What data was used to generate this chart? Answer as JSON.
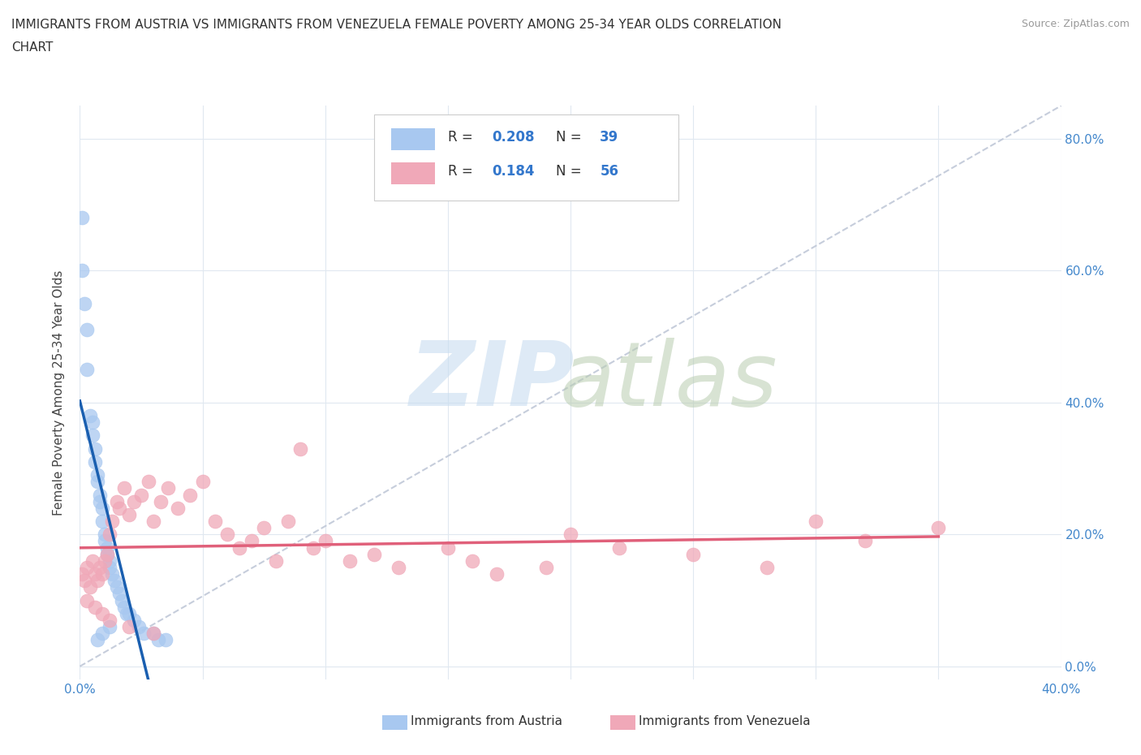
{
  "title_line1": "IMMIGRANTS FROM AUSTRIA VS IMMIGRANTS FROM VENEZUELA FEMALE POVERTY AMONG 25-34 YEAR OLDS CORRELATION",
  "title_line2": "CHART",
  "source": "Source: ZipAtlas.com",
  "ylabel": "Female Poverty Among 25-34 Year Olds",
  "xlim": [
    0.0,
    0.4
  ],
  "ylim": [
    -0.02,
    0.85
  ],
  "austria_R": 0.208,
  "austria_N": 39,
  "venezuela_R": 0.184,
  "venezuela_N": 56,
  "austria_color": "#a8c8f0",
  "venezuela_color": "#f0a8b8",
  "austria_line_color": "#1a5fb0",
  "venezuela_line_color": "#e0607a",
  "diagonal_color": "#c0c8d8",
  "austria_x": [
    0.001,
    0.001,
    0.002,
    0.003,
    0.003,
    0.004,
    0.005,
    0.005,
    0.006,
    0.006,
    0.007,
    0.007,
    0.008,
    0.008,
    0.009,
    0.009,
    0.01,
    0.01,
    0.011,
    0.011,
    0.012,
    0.012,
    0.013,
    0.014,
    0.015,
    0.016,
    0.017,
    0.018,
    0.019,
    0.02,
    0.022,
    0.024,
    0.026,
    0.03,
    0.032,
    0.035,
    0.012,
    0.009,
    0.007
  ],
  "austria_y": [
    0.68,
    0.6,
    0.55,
    0.51,
    0.45,
    0.38,
    0.37,
    0.35,
    0.33,
    0.31,
    0.29,
    0.28,
    0.26,
    0.25,
    0.24,
    0.22,
    0.2,
    0.19,
    0.18,
    0.17,
    0.16,
    0.15,
    0.14,
    0.13,
    0.12,
    0.11,
    0.1,
    0.09,
    0.08,
    0.08,
    0.07,
    0.06,
    0.05,
    0.05,
    0.04,
    0.04,
    0.06,
    0.05,
    0.04
  ],
  "venezuela_x": [
    0.001,
    0.002,
    0.003,
    0.004,
    0.005,
    0.006,
    0.007,
    0.008,
    0.009,
    0.01,
    0.011,
    0.012,
    0.013,
    0.015,
    0.016,
    0.018,
    0.02,
    0.022,
    0.025,
    0.028,
    0.03,
    0.033,
    0.036,
    0.04,
    0.045,
    0.05,
    0.055,
    0.06,
    0.065,
    0.07,
    0.075,
    0.08,
    0.085,
    0.09,
    0.095,
    0.1,
    0.11,
    0.12,
    0.13,
    0.15,
    0.16,
    0.17,
    0.19,
    0.2,
    0.22,
    0.25,
    0.28,
    0.3,
    0.32,
    0.35,
    0.003,
    0.006,
    0.009,
    0.012,
    0.02,
    0.03
  ],
  "venezuela_y": [
    0.14,
    0.13,
    0.15,
    0.12,
    0.16,
    0.14,
    0.13,
    0.15,
    0.14,
    0.16,
    0.17,
    0.2,
    0.22,
    0.25,
    0.24,
    0.27,
    0.23,
    0.25,
    0.26,
    0.28,
    0.22,
    0.25,
    0.27,
    0.24,
    0.26,
    0.28,
    0.22,
    0.2,
    0.18,
    0.19,
    0.21,
    0.16,
    0.22,
    0.33,
    0.18,
    0.19,
    0.16,
    0.17,
    0.15,
    0.18,
    0.16,
    0.14,
    0.15,
    0.2,
    0.18,
    0.17,
    0.15,
    0.22,
    0.19,
    0.21,
    0.1,
    0.09,
    0.08,
    0.07,
    0.06,
    0.05
  ]
}
